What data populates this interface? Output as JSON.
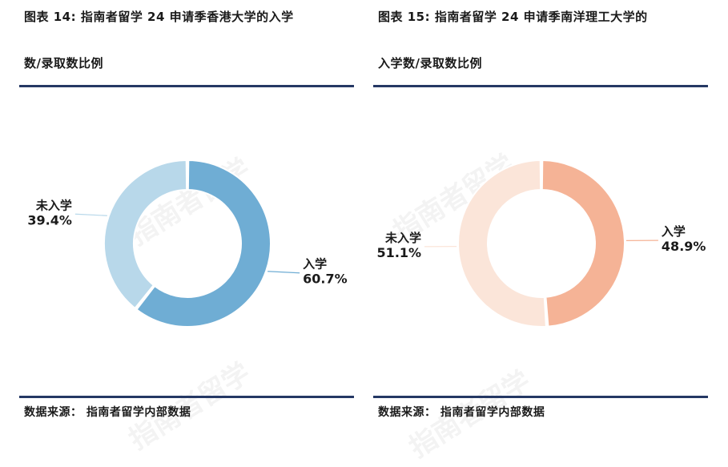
{
  "watermark": "指南者留学",
  "charts": [
    {
      "title_line1": "图表 14: 指南者留学 24 申请季香港大学的入学",
      "title_line2": "数/录取数比例",
      "source": "数据来源： 指南者留学内部数据"
    },
    {
      "title_line1": "图表 15: 指南者留学 24 申请季南洋理工大学的",
      "title_line2": "入学数/录取数比例",
      "source": "数据来源： 指南者留学内部数据"
    }
  ],
  "chart_data": [
    {
      "type": "pie",
      "donut": true,
      "slices": [
        {
          "label": "入学",
          "value": 60.7,
          "display": "60.7%",
          "color": "#6fadd4"
        },
        {
          "label": "未入学",
          "value": 39.4,
          "display": "39.4%",
          "color": "#b8d8ea"
        }
      ]
    },
    {
      "type": "pie",
      "donut": true,
      "slices": [
        {
          "label": "入学",
          "value": 48.9,
          "display": "48.9%",
          "color": "#f5b396"
        },
        {
          "label": "未入学",
          "value": 51.1,
          "display": "51.1%",
          "color": "#fbe5d9"
        }
      ]
    }
  ]
}
